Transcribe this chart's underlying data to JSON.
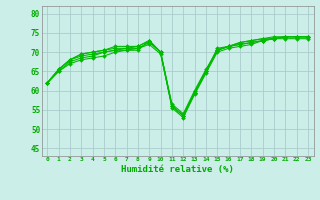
{
  "background_color": "#cceee8",
  "grid_color": "#aacccc",
  "line_color": "#00bb00",
  "marker_color": "#00bb00",
  "xlabel": "Humidité relative (%)",
  "xlabel_color": "#00aa00",
  "ylabel_color": "#00aa00",
  "xlim": [
    -0.5,
    23.5
  ],
  "ylim": [
    43,
    82
  ],
  "yticks": [
    45,
    50,
    55,
    60,
    65,
    70,
    75,
    80
  ],
  "xticks": [
    0,
    1,
    2,
    3,
    4,
    5,
    6,
    7,
    8,
    9,
    10,
    11,
    12,
    13,
    14,
    15,
    16,
    17,
    18,
    19,
    20,
    21,
    22,
    23
  ],
  "lines": [
    [
      62,
      65,
      67,
      68,
      68.5,
      69,
      70,
      70.5,
      70.5,
      73,
      70,
      55.5,
      53,
      59,
      64.5,
      70,
      71,
      71.5,
      72,
      73,
      73.5,
      73.5,
      73.5,
      73.5
    ],
    [
      62,
      65,
      67.5,
      68.5,
      69,
      70,
      70.5,
      70.5,
      71,
      72,
      69.5,
      56,
      53.5,
      59.5,
      65,
      70.5,
      71.5,
      72,
      72.5,
      73,
      73.5,
      74,
      74,
      74
    ],
    [
      62,
      65.5,
      68,
      69,
      69.5,
      70,
      70.5,
      71,
      71,
      72.5,
      70,
      56.5,
      54,
      60,
      65.5,
      70.5,
      71.5,
      72,
      72.5,
      73,
      73.5,
      74,
      74,
      74
    ],
    [
      62,
      65.5,
      68,
      69.5,
      70,
      70.5,
      71,
      71,
      71.5,
      73,
      70,
      56,
      53.5,
      59.5,
      65,
      70.5,
      71.5,
      72.5,
      73,
      73.5,
      73.5,
      74,
      74,
      74
    ],
    [
      62,
      65.5,
      68,
      69.5,
      70,
      70.5,
      71.5,
      71.5,
      71.5,
      73,
      70,
      56,
      53.5,
      59.5,
      65,
      71,
      71.5,
      72.5,
      73,
      73.5,
      74,
      74,
      74,
      74
    ]
  ]
}
